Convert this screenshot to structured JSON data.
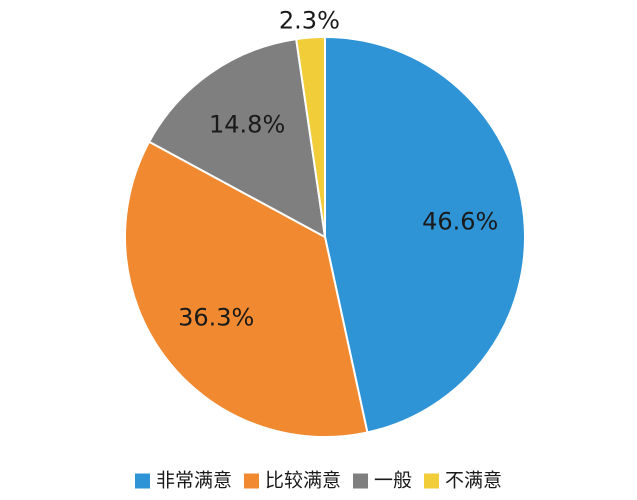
{
  "chart_data": {
    "type": "pie",
    "categories": [
      "非常满意",
      "比较满意",
      "一般",
      "不满意"
    ],
    "values": [
      46.6,
      36.3,
      14.8,
      2.3
    ],
    "value_labels": [
      "46.6%",
      "36.3%",
      "14.8%",
      "2.3%"
    ],
    "colors": [
      "#2e94d6",
      "#f0892f",
      "#7f7f7f",
      "#f2cd3a"
    ],
    "legend": "bottom"
  }
}
